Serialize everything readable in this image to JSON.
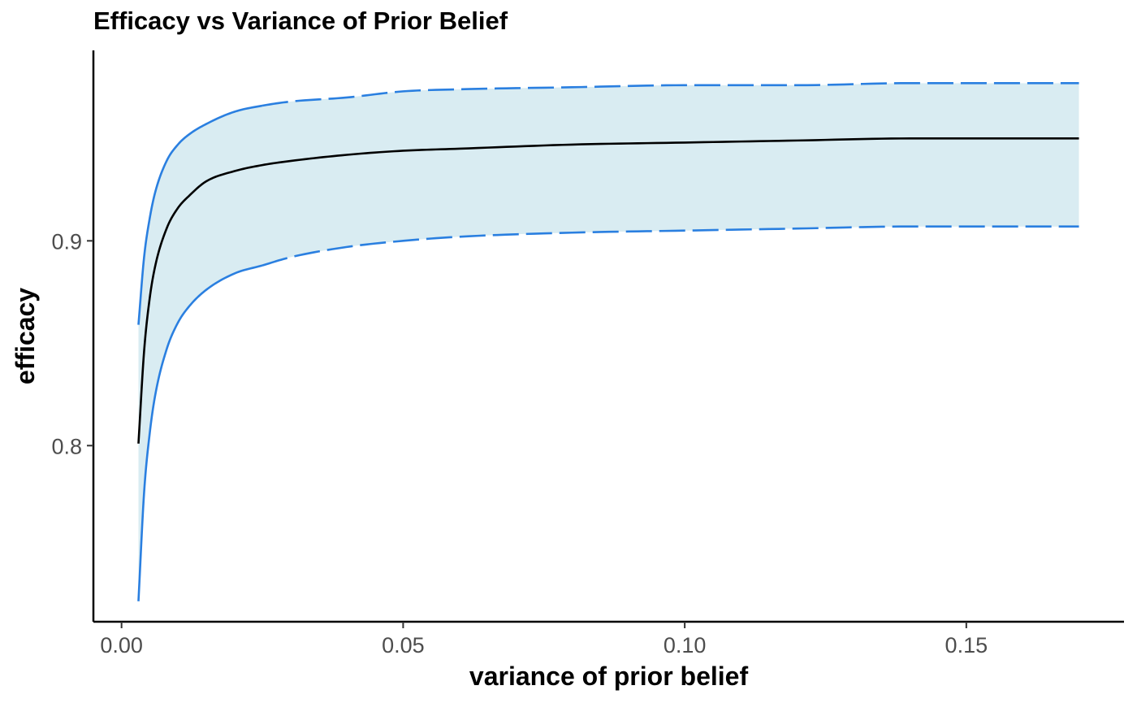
{
  "chart_data": {
    "type": "line",
    "title": "Efficacy vs Variance of Prior Belief",
    "xlabel": "variance of prior belief",
    "ylabel": "efficacy",
    "xlim": [
      -0.005,
      0.178
    ],
    "ylim": [
      0.714,
      0.993
    ],
    "x_ticks": [
      0.0,
      0.05,
      0.1,
      0.15
    ],
    "x_tick_labels": [
      "0.00",
      "0.05",
      "0.10",
      "0.15"
    ],
    "y_ticks": [
      0.8,
      0.9
    ],
    "y_tick_labels": [
      "0.8",
      "0.9"
    ],
    "grid": false,
    "legend": "none",
    "band_color": "#d9ecf2",
    "bound_color": "#2a7fe0",
    "center_color": "#000000",
    "x": [
      0.003,
      0.004,
      0.005,
      0.006,
      0.008,
      0.01,
      0.012,
      0.015,
      0.02,
      0.025,
      0.03,
      0.04,
      0.05,
      0.06,
      0.08,
      0.1,
      0.12,
      0.14,
      0.17
    ],
    "series": [
      {
        "role": "upper bound",
        "line_style": "solid then dashed",
        "dash_from_x": 0.025,
        "values": [
          0.859,
          0.892,
          0.911,
          0.924,
          0.939,
          0.947,
          0.952,
          0.957,
          0.963,
          0.966,
          0.968,
          0.97,
          0.973,
          0.974,
          0.975,
          0.976,
          0.976,
          0.977,
          0.977
        ]
      },
      {
        "role": "center",
        "line_style": "solid",
        "values": [
          0.801,
          0.846,
          0.872,
          0.888,
          0.906,
          0.916,
          0.922,
          0.929,
          0.934,
          0.937,
          0.939,
          0.942,
          0.944,
          0.945,
          0.947,
          0.948,
          0.949,
          0.95,
          0.95
        ]
      },
      {
        "role": "lower bound",
        "line_style": "solid then dashed",
        "dash_from_x": 0.025,
        "values": [
          0.724,
          0.777,
          0.806,
          0.825,
          0.847,
          0.86,
          0.868,
          0.876,
          0.884,
          0.888,
          0.892,
          0.897,
          0.9,
          0.902,
          0.904,
          0.905,
          0.906,
          0.907,
          0.907
        ]
      }
    ]
  }
}
